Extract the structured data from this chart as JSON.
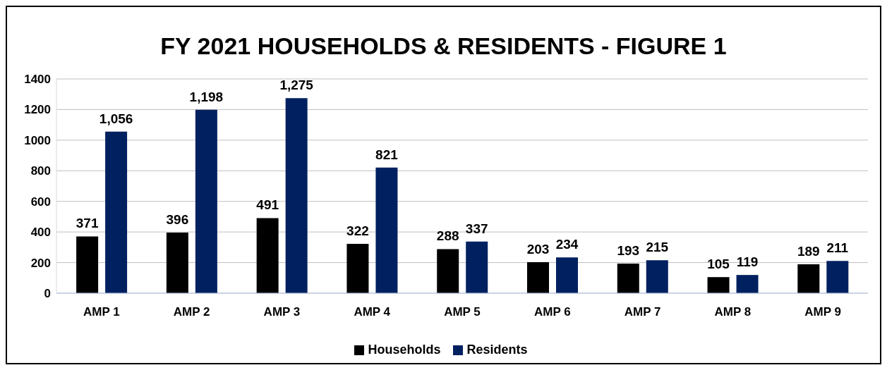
{
  "chart_data": {
    "type": "bar",
    "title": "FY 2021 HOUSEHOLDS & RESIDENTS - FIGURE 1",
    "categories": [
      "AMP 1",
      "AMP 2",
      "AMP 3",
      "AMP 4",
      "AMP 5",
      "AMP 6",
      "AMP 7",
      "AMP 8",
      "AMP 9"
    ],
    "series": [
      {
        "name": "Households",
        "color": "#000000",
        "values": [
          371,
          396,
          491,
          322,
          288,
          203,
          193,
          105,
          189
        ],
        "value_labels": [
          "371",
          "396",
          "491",
          "322",
          "288",
          "203",
          "193",
          "105",
          "189"
        ]
      },
      {
        "name": "Residents",
        "color": "#002060",
        "values": [
          1056,
          1198,
          1275,
          821,
          337,
          234,
          215,
          119,
          211
        ],
        "value_labels": [
          "1,056",
          "1,198",
          "1,275",
          "821",
          "337",
          "234",
          "215",
          "119",
          "211"
        ]
      }
    ],
    "ylim": [
      0,
      1400
    ],
    "yticks": [
      0,
      200,
      400,
      600,
      800,
      1000,
      1200,
      1400
    ],
    "grid": "y",
    "legend": "bottom"
  }
}
